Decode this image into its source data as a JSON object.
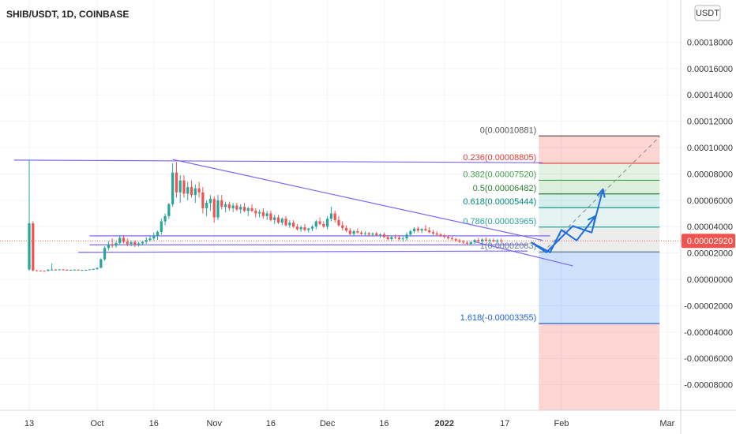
{
  "chart_data": {
    "type": "candlestick",
    "title": "SHIB/USDT, 1D, COINBASE",
    "currency_badge": "USDT",
    "last_price_label": "0.00002920",
    "colors": {
      "up": "#26a69a",
      "down": "#ef5350",
      "trendline": "#7b68ee",
      "arrow": "#1e6fe0",
      "price_line": "#ef5350"
    },
    "y_ticks": [
      "0.00018000",
      "0.00016000",
      "0.00014000",
      "0.00012000",
      "0.00010000",
      "0.00008000",
      "0.00006000",
      "0.00004000",
      "0.00002000",
      "0.00000000",
      "-0.00002000",
      "-0.00004000",
      "-0.00006000",
      "-0.00008000"
    ],
    "y_tick_values": [
      0.00018,
      0.00016,
      0.00014,
      0.00012,
      0.0001,
      8e-05,
      6e-05,
      4e-05,
      2e-05,
      0,
      -2e-05,
      -4e-05,
      -6e-05,
      -8e-05
    ],
    "x_ticks": [
      {
        "label": "13",
        "day": 0
      },
      {
        "label": "Oct",
        "day": 18
      },
      {
        "label": "16",
        "day": 33
      },
      {
        "label": "Nov",
        "day": 49
      },
      {
        "label": "16",
        "day": 64
      },
      {
        "label": "Dec",
        "day": 79
      },
      {
        "label": "16",
        "day": 94
      },
      {
        "label": "2022",
        "day": 110
      },
      {
        "label": "17",
        "day": 126
      },
      {
        "label": "Feb",
        "day": 141
      },
      {
        "label": "Mar",
        "day": 169
      }
    ],
    "fib_levels": [
      {
        "label": "0(0.00010881)",
        "value": 0.00010881,
        "color": "#555555"
      },
      {
        "label": "0.236(0.00008805)",
        "value": 8.805e-05,
        "color": "#e53935"
      },
      {
        "label": "0.382(0.00007520)",
        "value": 7.52e-05,
        "color": "#43a047"
      },
      {
        "label": "0.5(0.00006482)",
        "value": 6.482e-05,
        "color": "#2e7d32"
      },
      {
        "label": "0.618(0.00005444)",
        "value": 5.444e-05,
        "color": "#00897b"
      },
      {
        "label": "0.786(0.00003965)",
        "value": 3.965e-05,
        "color": "#26a69a"
      },
      {
        "label": "1(0.00002083)",
        "value": 2.083e-05,
        "color": "#607d8b"
      },
      {
        "label": "1.618(-0.00003355)",
        "value": -3.355e-05,
        "color": "#1e63d8"
      }
    ],
    "fib_range_days": [
      135,
      167
    ],
    "candles": [
      {
        "o": 7.5e-06,
        "h": 9.08e-05,
        "l": 6.5e-06,
        "c": 4.25e-05
      },
      {
        "o": 4.25e-05,
        "h": 4.4e-05,
        "l": 6e-06,
        "c": 6.8e-06
      },
      {
        "o": 6.8e-06,
        "h": 7.2e-06,
        "l": 6.2e-06,
        "c": 6.6e-06
      },
      {
        "o": 6.6e-06,
        "h": 6.8e-06,
        "l": 6.2e-06,
        "c": 6.5e-06
      },
      {
        "o": 6.5e-06,
        "h": 6.8e-06,
        "l": 6.2e-06,
        "c": 6.4e-06
      },
      {
        "o": 6.4e-06,
        "h": 7.8e-06,
        "l": 6.2e-06,
        "c": 7.2e-06
      },
      {
        "o": 7.2e-06,
        "h": 1.2e-05,
        "l": 6.8e-06,
        "c": 7.4e-06
      },
      {
        "o": 7.4e-06,
        "h": 7.8e-06,
        "l": 6.8e-06,
        "c": 7.1e-06
      },
      {
        "o": 7.1e-06,
        "h": 7.8e-06,
        "l": 6.8e-06,
        "c": 7.5e-06
      },
      {
        "o": 7.5e-06,
        "h": 7.8e-06,
        "l": 7e-06,
        "c": 7.2e-06
      },
      {
        "o": 7.2e-06,
        "h": 7.6e-06,
        "l": 6.8e-06,
        "c": 7e-06
      },
      {
        "o": 7e-06,
        "h": 7.4e-06,
        "l": 6.7e-06,
        "c": 7.2e-06
      },
      {
        "o": 7.2e-06,
        "h": 7.6e-06,
        "l": 6.9e-06,
        "c": 7.3e-06
      },
      {
        "o": 7.3e-06,
        "h": 7.6e-06,
        "l": 6.9e-06,
        "c": 7e-06
      },
      {
        "o": 7e-06,
        "h": 7.3e-06,
        "l": 6.7e-06,
        "c": 7.1e-06
      },
      {
        "o": 7.1e-06,
        "h": 7.4e-06,
        "l": 6.8e-06,
        "c": 7.2e-06
      },
      {
        "o": 7.2e-06,
        "h": 7.6e-06,
        "l": 6.9e-06,
        "c": 7.5e-06
      },
      {
        "o": 7.5e-06,
        "h": 8.2e-06,
        "l": 7.2e-06,
        "c": 7.8e-06
      },
      {
        "o": 7.8e-06,
        "h": 9e-06,
        "l": 7.4e-06,
        "c": 8.7e-06
      },
      {
        "o": 8.7e-06,
        "h": 1.6e-05,
        "l": 8.5e-06,
        "c": 1.52e-05
      },
      {
        "o": 1.52e-05,
        "h": 2.5e-05,
        "l": 1.4e-05,
        "c": 2.38e-05
      },
      {
        "o": 2.38e-05,
        "h": 2.9e-05,
        "l": 2.2e-05,
        "c": 2.65e-05
      },
      {
        "o": 2.65e-05,
        "h": 3.1e-05,
        "l": 2.4e-05,
        "c": 2.55e-05
      },
      {
        "o": 2.55e-05,
        "h": 2.9e-05,
        "l": 2.4e-05,
        "c": 2.75e-05
      },
      {
        "o": 2.75e-05,
        "h": 3.35e-05,
        "l": 2.65e-05,
        "c": 3.15e-05
      },
      {
        "o": 3.15e-05,
        "h": 3.35e-05,
        "l": 2.7e-05,
        "c": 2.85e-05
      },
      {
        "o": 2.85e-05,
        "h": 3.1e-05,
        "l": 2.5e-05,
        "c": 2.68e-05
      },
      {
        "o": 2.68e-05,
        "h": 2.95e-05,
        "l": 2.5e-05,
        "c": 2.82e-05
      },
      {
        "o": 2.82e-05,
        "h": 2.95e-05,
        "l": 2.45e-05,
        "c": 2.62e-05
      },
      {
        "o": 2.62e-05,
        "h": 2.85e-05,
        "l": 2.48e-05,
        "c": 2.72e-05
      },
      {
        "o": 2.72e-05,
        "h": 2.9e-05,
        "l": 2.6e-05,
        "c": 2.85e-05
      },
      {
        "o": 2.85e-05,
        "h": 3.2e-05,
        "l": 2.7e-05,
        "c": 2.98e-05
      },
      {
        "o": 2.98e-05,
        "h": 3.3e-05,
        "l": 2.85e-05,
        "c": 3.1e-05
      },
      {
        "o": 3.1e-05,
        "h": 3.55e-05,
        "l": 2.95e-05,
        "c": 3.3e-05
      },
      {
        "o": 3.3e-05,
        "h": 3.7e-05,
        "l": 3e-05,
        "c": 3.6e-05
      },
      {
        "o": 3.6e-05,
        "h": 4.6e-05,
        "l": 3.4e-05,
        "c": 4.4e-05
      },
      {
        "o": 4.4e-05,
        "h": 5e-05,
        "l": 4.1e-05,
        "c": 4.8e-05
      },
      {
        "o": 4.8e-05,
        "h": 5.8e-05,
        "l": 4.6e-05,
        "c": 5.7e-05
      },
      {
        "o": 5.7e-05,
        "h": 8.8e-05,
        "l": 5.5e-05,
        "c": 8.1e-05
      },
      {
        "o": 8.1e-05,
        "h": 8.9e-05,
        "l": 6.2e-05,
        "c": 6.6e-05
      },
      {
        "o": 6.6e-05,
        "h": 7.9e-05,
        "l": 5.8e-05,
        "c": 7.5e-05
      },
      {
        "o": 7.5e-05,
        "h": 7.9e-05,
        "l": 6.2e-05,
        "c": 6.5e-05
      },
      {
        "o": 6.5e-05,
        "h": 7.4e-05,
        "l": 6e-05,
        "c": 7e-05
      },
      {
        "o": 7e-05,
        "h": 7.5e-05,
        "l": 6.2e-05,
        "c": 6.4e-05
      },
      {
        "o": 6.4e-05,
        "h": 7.2e-05,
        "l": 5.8e-05,
        "c": 6.9e-05
      },
      {
        "o": 6.9e-05,
        "h": 7.4e-05,
        "l": 6.2e-05,
        "c": 6.6e-05
      },
      {
        "o": 6.6e-05,
        "h": 7e-05,
        "l": 5e-05,
        "c": 5.4e-05
      },
      {
        "o": 5.4e-05,
        "h": 6e-05,
        "l": 4.8e-05,
        "c": 5.8e-05
      },
      {
        "o": 5.8e-05,
        "h": 6.4e-05,
        "l": 5.2e-05,
        "c": 6.1e-05
      },
      {
        "o": 6.1e-05,
        "h": 6.3e-05,
        "l": 4.3e-05,
        "c": 4.7e-05
      },
      {
        "o": 4.7e-05,
        "h": 6.4e-05,
        "l": 4.5e-05,
        "c": 6e-05
      },
      {
        "o": 6e-05,
        "h": 6.4e-05,
        "l": 5.3e-05,
        "c": 5.5e-05
      },
      {
        "o": 5.5e-05,
        "h": 5.9e-05,
        "l": 5.1e-05,
        "c": 5.7e-05
      },
      {
        "o": 5.7e-05,
        "h": 5.9e-05,
        "l": 5.2e-05,
        "c": 5.4e-05
      },
      {
        "o": 5.4e-05,
        "h": 5.8e-05,
        "l": 5.1e-05,
        "c": 5.6e-05
      },
      {
        "o": 5.6e-05,
        "h": 5.8e-05,
        "l": 5.2e-05,
        "c": 5.3e-05
      },
      {
        "o": 5.3e-05,
        "h": 5.7e-05,
        "l": 5e-05,
        "c": 5.5e-05
      },
      {
        "o": 5.5e-05,
        "h": 5.8e-05,
        "l": 5.1e-05,
        "c": 5.2e-05
      },
      {
        "o": 5.2e-05,
        "h": 5.5e-05,
        "l": 4.8e-05,
        "c": 5.4e-05
      },
      {
        "o": 5.4e-05,
        "h": 5.7e-05,
        "l": 5.1e-05,
        "c": 5.2e-05
      },
      {
        "o": 5.2e-05,
        "h": 5.4e-05,
        "l": 4.7e-05,
        "c": 5e-05
      },
      {
        "o": 5e-05,
        "h": 5.3e-05,
        "l": 4.7e-05,
        "c": 5.1e-05
      },
      {
        "o": 5.1e-05,
        "h": 5.4e-05,
        "l": 4.6e-05,
        "c": 4.8e-05
      },
      {
        "o": 4.8e-05,
        "h": 5.2e-05,
        "l": 4.5e-05,
        "c": 5e-05
      },
      {
        "o": 5e-05,
        "h": 5.2e-05,
        "l": 4.4e-05,
        "c": 4.5e-05
      },
      {
        "o": 4.5e-05,
        "h": 4.9e-05,
        "l": 4.2e-05,
        "c": 4.7e-05
      },
      {
        "o": 4.7e-05,
        "h": 4.9e-05,
        "l": 4.2e-05,
        "c": 4.3e-05
      },
      {
        "o": 4.3e-05,
        "h": 4.7e-05,
        "l": 4.1e-05,
        "c": 4.6e-05
      },
      {
        "o": 4.6e-05,
        "h": 4.8e-05,
        "l": 4e-05,
        "c": 4.1e-05
      },
      {
        "o": 4.1e-05,
        "h": 4.5e-05,
        "l": 3.9e-05,
        "c": 4.3e-05
      },
      {
        "o": 4.3e-05,
        "h": 4.5e-05,
        "l": 3.9e-05,
        "c": 4e-05
      },
      {
        "o": 4e-05,
        "h": 4.2e-05,
        "l": 3.7e-05,
        "c": 3.8e-05
      },
      {
        "o": 3.8e-05,
        "h": 4.1e-05,
        "l": 3.6e-05,
        "c": 3.95e-05
      },
      {
        "o": 3.95e-05,
        "h": 4.2e-05,
        "l": 3.65e-05,
        "c": 3.75e-05
      },
      {
        "o": 3.75e-05,
        "h": 3.9e-05,
        "l": 3.55e-05,
        "c": 3.85e-05
      },
      {
        "o": 3.85e-05,
        "h": 4.1e-05,
        "l": 3.65e-05,
        "c": 4e-05
      },
      {
        "o": 4e-05,
        "h": 4.5e-05,
        "l": 3.8e-05,
        "c": 4.4e-05
      },
      {
        "o": 4.4e-05,
        "h": 4.7e-05,
        "l": 4.1e-05,
        "c": 4.2e-05
      },
      {
        "o": 4.2e-05,
        "h": 4.4e-05,
        "l": 3.9e-05,
        "c": 4e-05
      },
      {
        "o": 4e-05,
        "h": 4.8e-05,
        "l": 3.8e-05,
        "c": 4.6e-05
      },
      {
        "o": 4.6e-05,
        "h": 5.5e-05,
        "l": 4.4e-05,
        "c": 5e-05
      },
      {
        "o": 5e-05,
        "h": 5.2e-05,
        "l": 4.3e-05,
        "c": 4.5e-05
      },
      {
        "o": 4.5e-05,
        "h": 4.8e-05,
        "l": 4e-05,
        "c": 4.1e-05
      },
      {
        "o": 4.1e-05,
        "h": 4.4e-05,
        "l": 3.7e-05,
        "c": 3.9e-05
      },
      {
        "o": 3.9e-05,
        "h": 4.1e-05,
        "l": 3.6e-05,
        "c": 3.7e-05
      },
      {
        "o": 3.7e-05,
        "h": 3.9e-05,
        "l": 3.35e-05,
        "c": 3.45e-05
      },
      {
        "o": 3.45e-05,
        "h": 3.75e-05,
        "l": 3.3e-05,
        "c": 3.65e-05
      },
      {
        "o": 3.65e-05,
        "h": 3.85e-05,
        "l": 3.45e-05,
        "c": 3.55e-05
      },
      {
        "o": 3.55e-05,
        "h": 3.7e-05,
        "l": 3.35e-05,
        "c": 3.45e-05
      },
      {
        "o": 3.45e-05,
        "h": 3.65e-05,
        "l": 3.3e-05,
        "c": 3.5e-05
      },
      {
        "o": 3.5e-05,
        "h": 3.6e-05,
        "l": 3.25e-05,
        "c": 3.4e-05
      },
      {
        "o": 3.4e-05,
        "h": 3.55e-05,
        "l": 3.25e-05,
        "c": 3.48e-05
      },
      {
        "o": 3.48e-05,
        "h": 3.6e-05,
        "l": 3.25e-05,
        "c": 3.35e-05
      },
      {
        "o": 3.35e-05,
        "h": 3.5e-05,
        "l": 3.15e-05,
        "c": 3.4e-05
      },
      {
        "o": 3.4e-05,
        "h": 3.55e-05,
        "l": 3.15e-05,
        "c": 3.2e-05
      },
      {
        "o": 3.2e-05,
        "h": 3.35e-05,
        "l": 2.95e-05,
        "c": 3.05e-05
      },
      {
        "o": 3.05e-05,
        "h": 3.3e-05,
        "l": 2.9e-05,
        "c": 3.2e-05
      },
      {
        "o": 3.2e-05,
        "h": 3.4e-05,
        "l": 3.05e-05,
        "c": 3.15e-05
      },
      {
        "o": 3.15e-05,
        "h": 3.35e-05,
        "l": 2.95e-05,
        "c": 3.05e-05
      },
      {
        "o": 3.05e-05,
        "h": 3.25e-05,
        "l": 2.85e-05,
        "c": 3.1e-05
      },
      {
        "o": 3.1e-05,
        "h": 3.55e-05,
        "l": 2.95e-05,
        "c": 3.4e-05
      },
      {
        "o": 3.4e-05,
        "h": 3.75e-05,
        "l": 3.25e-05,
        "c": 3.65e-05
      },
      {
        "o": 3.65e-05,
        "h": 3.95e-05,
        "l": 3.5e-05,
        "c": 3.85e-05
      },
      {
        "o": 3.85e-05,
        "h": 4e-05,
        "l": 3.55e-05,
        "c": 3.7e-05
      },
      {
        "o": 3.7e-05,
        "h": 3.9e-05,
        "l": 3.5e-05,
        "c": 3.82e-05
      },
      {
        "o": 3.82e-05,
        "h": 4.1e-05,
        "l": 3.65e-05,
        "c": 3.72e-05
      },
      {
        "o": 3.72e-05,
        "h": 3.95e-05,
        "l": 3.5e-05,
        "c": 3.58e-05
      },
      {
        "o": 3.58e-05,
        "h": 3.75e-05,
        "l": 3.35e-05,
        "c": 3.48e-05
      },
      {
        "o": 3.48e-05,
        "h": 3.65e-05,
        "l": 3.3e-05,
        "c": 3.4e-05
      },
      {
        "o": 3.4e-05,
        "h": 3.5e-05,
        "l": 3.2e-05,
        "c": 3.3e-05
      },
      {
        "o": 3.3e-05,
        "h": 3.45e-05,
        "l": 3.1e-05,
        "c": 3.22e-05
      },
      {
        "o": 3.22e-05,
        "h": 3.35e-05,
        "l": 3.02e-05,
        "c": 3.12e-05
      },
      {
        "o": 3.12e-05,
        "h": 3.25e-05,
        "l": 2.95e-05,
        "c": 3.05e-05
      },
      {
        "o": 3.05e-05,
        "h": 3.15e-05,
        "l": 2.85e-05,
        "c": 2.95e-05
      },
      {
        "o": 2.95e-05,
        "h": 3.08e-05,
        "l": 2.75e-05,
        "c": 2.85e-05
      },
      {
        "o": 2.85e-05,
        "h": 2.98e-05,
        "l": 2.7e-05,
        "c": 2.78e-05
      },
      {
        "o": 2.78e-05,
        "h": 2.92e-05,
        "l": 2.62e-05,
        "c": 2.7e-05
      },
      {
        "o": 2.7e-05,
        "h": 2.88e-05,
        "l": 2.58e-05,
        "c": 2.82e-05
      },
      {
        "o": 2.82e-05,
        "h": 3.05e-05,
        "l": 2.7e-05,
        "c": 2.98e-05
      },
      {
        "o": 2.98e-05,
        "h": 3.15e-05,
        "l": 2.8e-05,
        "c": 2.88e-05
      },
      {
        "o": 2.88e-05,
        "h": 3.12e-05,
        "l": 2.75e-05,
        "c": 3.02e-05
      },
      {
        "o": 3.02e-05,
        "h": 3.18e-05,
        "l": 2.85e-05,
        "c": 2.92e-05
      },
      {
        "o": 2.92e-05,
        "h": 3.1e-05,
        "l": 2.78e-05,
        "c": 2.98e-05
      },
      {
        "o": 2.98e-05,
        "h": 3.1e-05,
        "l": 2.82e-05,
        "c": 2.88e-05
      },
      {
        "o": 2.88e-05,
        "h": 3.05e-05,
        "l": 2.75e-05,
        "c": 2.95e-05
      },
      {
        "o": 2.95e-05,
        "h": 3.08e-05,
        "l": 2.8e-05,
        "c": 2.92e-05
      }
    ],
    "trendlines": [
      {
        "name": "upper-horizontal",
        "d1": -4,
        "v1": 9.05e-05,
        "d2": 136,
        "v2": 8.85e-05
      },
      {
        "name": "descending",
        "d1": 38,
        "v1": 9.1e-05,
        "d2": 136,
        "v2": 2.96e-05
      },
      {
        "name": "channel-top",
        "d1": 16,
        "v1": 3.3e-05,
        "d2": 138,
        "v2": 3.3e-05
      },
      {
        "name": "channel-mid",
        "d1": 16,
        "v1": 2.62e-05,
        "d2": 132,
        "v2": 2.62e-05
      },
      {
        "name": "channel-base",
        "d1": 13,
        "v1": 2.05e-05,
        "d2": 132,
        "v2": 2.15e-05
      },
      {
        "name": "lower-slope",
        "d1": 118,
        "v1": 2.85e-05,
        "d2": 144,
        "v2": 1.02e-05
      }
    ],
    "arrows": [
      {
        "name": "arrow-lower",
        "points": [
          [
            133,
            2.8e-05
          ],
          [
            138,
            2.05e-05
          ],
          [
            141,
            3.75e-05
          ],
          [
            145,
            2.95e-05
          ],
          [
            150,
            4.8e-05
          ]
        ]
      },
      {
        "name": "arrow-upper",
        "points": [
          [
            133,
            2.8e-05
          ],
          [
            137,
            2.05e-05
          ],
          [
            144,
            4.05e-05
          ],
          [
            149,
            3.55e-05
          ],
          [
            152,
            6.85e-05
          ]
        ]
      }
    ],
    "target_dashed": {
      "d1": 136,
      "v1": 2.05e-05,
      "d2": 167,
      "v2": 0.0001082
    }
  }
}
